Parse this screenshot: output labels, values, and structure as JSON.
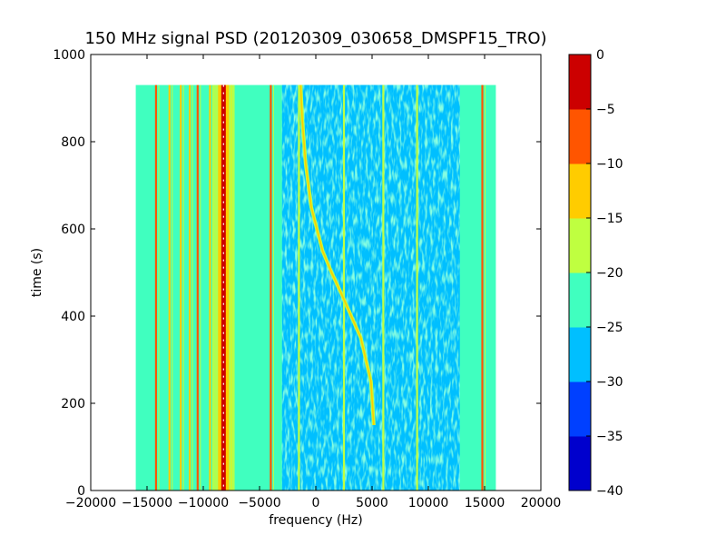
{
  "chart_data": {
    "type": "heatmap",
    "title": "150 MHz signal PSD (20120309_030658_DMSPF15_TRO)",
    "xlabel": "frequency (Hz)",
    "ylabel": "time (s)",
    "xlim": [
      -20000,
      20000
    ],
    "ylim": [
      0,
      1000
    ],
    "x_ticks": [
      -20000,
      -15000,
      -10000,
      -5000,
      0,
      5000,
      10000,
      15000,
      20000
    ],
    "x_tick_labels": [
      "−20000",
      "−15000",
      "−10000",
      "−5000",
      "0",
      "5000",
      "10000",
      "15000",
      "20000"
    ],
    "y_ticks": [
      0,
      200,
      400,
      600,
      800,
      1000
    ],
    "y_tick_labels": [
      "0",
      "200",
      "400",
      "600",
      "800",
      "1000"
    ],
    "data_extent": {
      "x": [
        -16000,
        16000
      ],
      "y": [
        0,
        930
      ]
    },
    "grid": false,
    "colorbar": {
      "range": [
        -40,
        0
      ],
      "levels": [
        -40,
        -35,
        -30,
        -25,
        -20,
        -15,
        -10,
        -5,
        0
      ],
      "tick_labels": [
        "−40",
        "−35",
        "−30",
        "−25",
        "−20",
        "−15",
        "−10",
        "−5",
        "0"
      ],
      "colors": [
        "#0000cd",
        "#0040ff",
        "#00bfff",
        "#40ffbf",
        "#bfff40",
        "#ffcc00",
        "#ff5500",
        "#cc0000"
      ]
    },
    "doppler_trace": [
      {
        "t": 150,
        "f": 5150
      },
      {
        "t": 250,
        "f": 4900
      },
      {
        "t": 350,
        "f": 4000
      },
      {
        "t": 450,
        "f": 2300
      },
      {
        "t": 500,
        "f": 1400
      },
      {
        "t": 550,
        "f": 600
      },
      {
        "t": 650,
        "f": -400
      },
      {
        "t": 750,
        "f": -900
      },
      {
        "t": 850,
        "f": -1200
      },
      {
        "t": 930,
        "f": -1350
      }
    ],
    "lines": [
      {
        "f": -14200,
        "level": -10
      },
      {
        "f": -13000,
        "level": -15
      },
      {
        "f": -12000,
        "level": -15
      },
      {
        "f": -11200,
        "level": -15
      },
      {
        "f": -10500,
        "level": -10
      },
      {
        "f": -9400,
        "level": -15
      },
      {
        "f": -8200,
        "level": -15
      },
      {
        "f": -7500,
        "level": -15
      },
      {
        "f": -4000,
        "level": -10
      },
      {
        "f": -1500,
        "level": -20
      },
      {
        "f": 2500,
        "level": -20
      },
      {
        "f": 6000,
        "level": -20
      },
      {
        "f": 9000,
        "level": -20
      },
      {
        "f": 14800,
        "level": -10
      }
    ]
  }
}
